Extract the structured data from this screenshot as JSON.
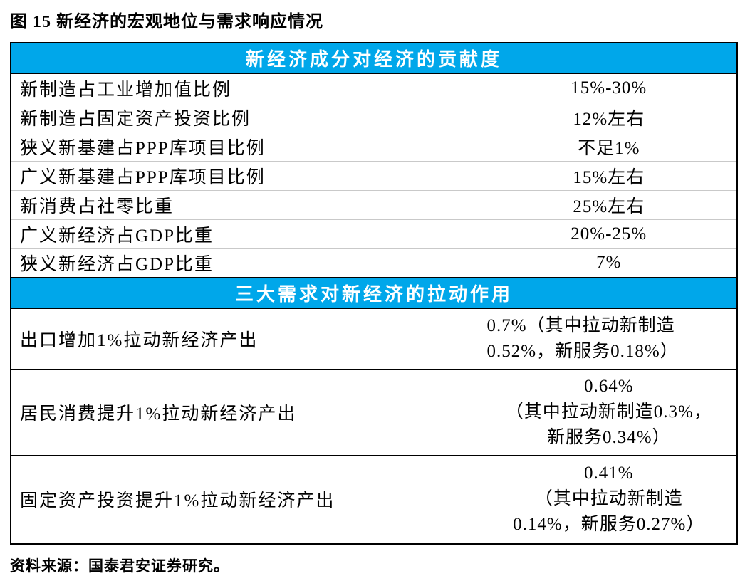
{
  "figure": {
    "title": "图 15 新经济的宏观地位与需求响应情况",
    "source": "资料来源：国泰君安证券研究。"
  },
  "colors": {
    "header_bg": "#00A7EA",
    "header_text": "#FFFFFF",
    "body_text": "#000000",
    "grid_light": "#C9C9C9",
    "grid_dark": "#000000",
    "page_bg": "#FFFFFF"
  },
  "chart_data": {
    "type": "table",
    "sections": [
      {
        "header": "新经济成分对经济的贡献度",
        "rows": [
          {
            "label": "新制造占工业增加值比例",
            "value": "15%-30%"
          },
          {
            "label": "新制造占固定资产投资比例",
            "value": "12%左右"
          },
          {
            "label": "狭义新基建占PPP库项目比例",
            "value": "不足1%"
          },
          {
            "label": "广义新基建占PPP库项目比例",
            "value": "15%左右"
          },
          {
            "label": "新消费占社零比重",
            "value": "25%左右"
          },
          {
            "label": "广义新经济占GDP比重",
            "value": "20%-25%"
          },
          {
            "label": "狭义新经济占GDP比重",
            "value": "7%"
          }
        ]
      },
      {
        "header": "三大需求对新经济的拉动作用",
        "rows": [
          {
            "label": "出口增加1%拉动新经济产出",
            "value_lines": [
              "0.7%（其中拉动新制造",
              "0.52%，新服务0.18%）"
            ]
          },
          {
            "label": "居民消费提升1%拉动新经济产出",
            "value_lines": [
              "0.64%",
              "（其中拉动新制造0.3%，",
              "新服务0.34%）"
            ]
          },
          {
            "label": "固定资产投资提升1%拉动新经济产出",
            "value_lines": [
              "0.41%",
              "（其中拉动新制造",
              "0.14%，新服务0.27%）"
            ]
          }
        ]
      }
    ]
  }
}
